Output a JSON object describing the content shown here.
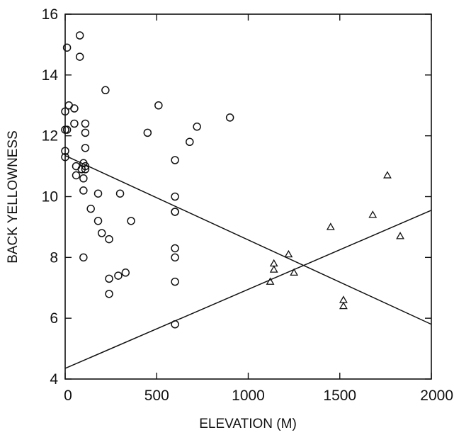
{
  "chart_data": {
    "type": "scatter",
    "title": "",
    "xlabel": "ELEVATION (M)",
    "ylabel": "BACK YELLOWNESS",
    "xlim": [
      0,
      2000
    ],
    "ylim": [
      4,
      16
    ],
    "xticks": [
      0,
      500,
      1000,
      1500,
      2000
    ],
    "yticks": [
      4,
      6,
      8,
      10,
      12,
      14,
      16
    ],
    "grid": false,
    "legend": "none",
    "series": [
      {
        "marker": "circle",
        "points": [
          [
            0,
            11.3
          ],
          [
            0,
            11.5
          ],
          [
            0,
            12.2
          ],
          [
            0,
            12.8
          ],
          [
            10,
            14.9
          ],
          [
            10,
            12.2
          ],
          [
            20,
            13.0
          ],
          [
            50,
            12.9
          ],
          [
            50,
            12.4
          ],
          [
            60,
            11.0
          ],
          [
            60,
            10.7
          ],
          [
            80,
            15.3
          ],
          [
            80,
            14.6
          ],
          [
            90,
            10.9
          ],
          [
            100,
            11.1
          ],
          [
            100,
            10.6
          ],
          [
            100,
            10.2
          ],
          [
            100,
            8.0
          ],
          [
            110,
            12.4
          ],
          [
            110,
            12.1
          ],
          [
            110,
            11.6
          ],
          [
            110,
            11.0
          ],
          [
            110,
            10.9
          ],
          [
            140,
            9.6
          ],
          [
            180,
            10.1
          ],
          [
            180,
            9.2
          ],
          [
            200,
            8.8
          ],
          [
            220,
            13.5
          ],
          [
            240,
            8.6
          ],
          [
            240,
            7.3
          ],
          [
            240,
            6.8
          ],
          [
            290,
            7.4
          ],
          [
            300,
            10.1
          ],
          [
            330,
            7.5
          ],
          [
            360,
            9.2
          ],
          [
            450,
            12.1
          ],
          [
            510,
            13.0
          ],
          [
            600,
            11.2
          ],
          [
            600,
            10.0
          ],
          [
            600,
            9.5
          ],
          [
            600,
            9.5
          ],
          [
            600,
            8.3
          ],
          [
            600,
            8.0
          ],
          [
            600,
            7.2
          ],
          [
            600,
            5.8
          ],
          [
            680,
            11.8
          ],
          [
            720,
            12.3
          ],
          [
            900,
            12.6
          ]
        ]
      },
      {
        "marker": "triangle",
        "points": [
          [
            1120,
            7.2
          ],
          [
            1140,
            7.8
          ],
          [
            1140,
            7.6
          ],
          [
            1220,
            8.1
          ],
          [
            1250,
            7.5
          ],
          [
            1450,
            9.0
          ],
          [
            1520,
            6.6
          ],
          [
            1520,
            6.4
          ],
          [
            1680,
            9.4
          ],
          [
            1760,
            10.7
          ],
          [
            1830,
            8.7
          ]
        ]
      }
    ],
    "lines": [
      {
        "x": [
          0,
          2000
        ],
        "y": [
          11.35,
          5.8
        ]
      },
      {
        "x": [
          0,
          2000
        ],
        "y": [
          4.35,
          9.55
        ]
      }
    ]
  }
}
